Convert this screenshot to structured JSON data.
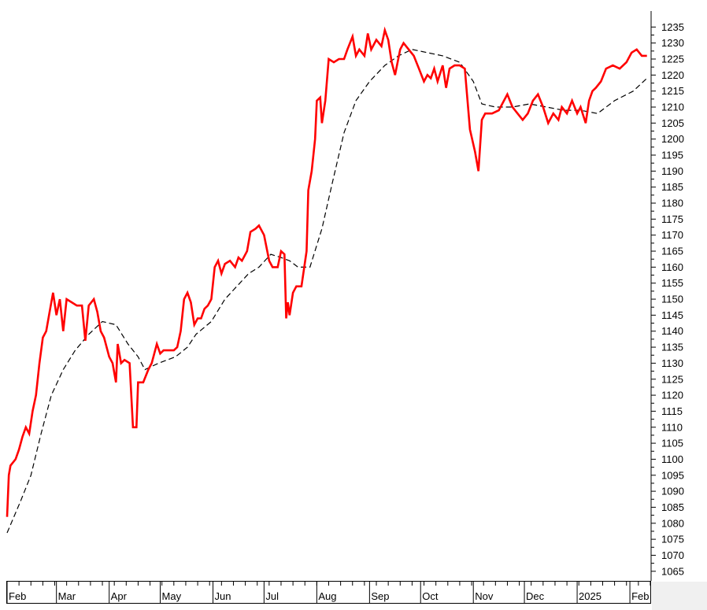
{
  "chart_data": {
    "type": "line",
    "title": "",
    "xlabel": "",
    "ylabel": "",
    "ylim": [
      1062,
      1240
    ],
    "y_ticks": [
      1065,
      1070,
      1075,
      1080,
      1085,
      1090,
      1095,
      1100,
      1105,
      1110,
      1115,
      1120,
      1125,
      1130,
      1135,
      1140,
      1145,
      1150,
      1155,
      1160,
      1165,
      1170,
      1175,
      1180,
      1185,
      1190,
      1195,
      1200,
      1205,
      1210,
      1215,
      1220,
      1225,
      1230,
      1235
    ],
    "x_range": [
      "2024-02-01",
      "2025-02-13"
    ],
    "x_tick_labels": [
      {
        "label": "Feb",
        "date": "2024-02-01"
      },
      {
        "label": "Mar",
        "date": "2024-03-01"
      },
      {
        "label": "Apr",
        "date": "2024-04-01"
      },
      {
        "label": "May",
        "date": "2024-05-01"
      },
      {
        "label": "Jun",
        "date": "2024-06-01"
      },
      {
        "label": "Jul",
        "date": "2024-07-01"
      },
      {
        "label": "Aug",
        "date": "2024-08-01"
      },
      {
        "label": "Sep",
        "date": "2024-09-01"
      },
      {
        "label": "Oct",
        "date": "2024-10-01"
      },
      {
        "label": "Nov",
        "date": "2024-11-01"
      },
      {
        "label": "Dec",
        "date": "2024-12-01"
      },
      {
        "label": "2025",
        "date": "2025-01-01"
      },
      {
        "label": "Feb",
        "date": "2025-02-01"
      }
    ],
    "grid": false,
    "series": [
      {
        "style": "solid",
        "color": "#ff0000",
        "points": [
          [
            "2024-02-01",
            1082
          ],
          [
            "2024-02-02",
            1095
          ],
          [
            "2024-02-03",
            1098
          ],
          [
            "2024-02-06",
            1100
          ],
          [
            "2024-02-08",
            1103
          ],
          [
            "2024-02-10",
            1107
          ],
          [
            "2024-02-12",
            1110
          ],
          [
            "2024-02-14",
            1108
          ],
          [
            "2024-02-16",
            1115
          ],
          [
            "2024-02-18",
            1120
          ],
          [
            "2024-02-20",
            1130
          ],
          [
            "2024-02-22",
            1138
          ],
          [
            "2024-02-24",
            1140
          ],
          [
            "2024-02-26",
            1146
          ],
          [
            "2024-02-28",
            1152
          ],
          [
            "2024-03-01",
            1145
          ],
          [
            "2024-03-03",
            1150
          ],
          [
            "2024-03-05",
            1140
          ],
          [
            "2024-03-07",
            1150
          ],
          [
            "2024-03-10",
            1149
          ],
          [
            "2024-03-13",
            1148
          ],
          [
            "2024-03-16",
            1148
          ],
          [
            "2024-03-18",
            1137
          ],
          [
            "2024-03-20",
            1148
          ],
          [
            "2024-03-23",
            1150
          ],
          [
            "2024-03-25",
            1146
          ],
          [
            "2024-03-27",
            1140
          ],
          [
            "2024-03-29",
            1138
          ],
          [
            "2024-04-01",
            1132
          ],
          [
            "2024-04-03",
            1130
          ],
          [
            "2024-04-05",
            1124
          ],
          [
            "2024-04-06",
            1136
          ],
          [
            "2024-04-08",
            1130
          ],
          [
            "2024-04-10",
            1131
          ],
          [
            "2024-04-13",
            1130
          ],
          [
            "2024-04-15",
            1110
          ],
          [
            "2024-04-17",
            1110
          ],
          [
            "2024-04-18",
            1124
          ],
          [
            "2024-04-21",
            1124
          ],
          [
            "2024-04-24",
            1128
          ],
          [
            "2024-04-26",
            1130
          ],
          [
            "2024-04-29",
            1136
          ],
          [
            "2024-05-01",
            1133
          ],
          [
            "2024-05-03",
            1134
          ],
          [
            "2024-05-06",
            1134
          ],
          [
            "2024-05-09",
            1134
          ],
          [
            "2024-05-11",
            1135
          ],
          [
            "2024-05-13",
            1140
          ],
          [
            "2024-05-15",
            1150
          ],
          [
            "2024-05-17",
            1152
          ],
          [
            "2024-05-19",
            1149
          ],
          [
            "2024-05-21",
            1142
          ],
          [
            "2024-05-23",
            1144
          ],
          [
            "2024-05-25",
            1144
          ],
          [
            "2024-05-27",
            1147
          ],
          [
            "2024-05-29",
            1148
          ],
          [
            "2024-05-31",
            1150
          ],
          [
            "2024-06-02",
            1160
          ],
          [
            "2024-06-04",
            1162
          ],
          [
            "2024-06-06",
            1158
          ],
          [
            "2024-06-08",
            1161
          ],
          [
            "2024-06-11",
            1162
          ],
          [
            "2024-06-14",
            1160
          ],
          [
            "2024-06-16",
            1163
          ],
          [
            "2024-06-18",
            1162
          ],
          [
            "2024-06-21",
            1165
          ],
          [
            "2024-06-23",
            1171
          ],
          [
            "2024-06-26",
            1172
          ],
          [
            "2024-06-28",
            1173
          ],
          [
            "2024-07-01",
            1170
          ],
          [
            "2024-07-04",
            1162
          ],
          [
            "2024-07-06",
            1160
          ],
          [
            "2024-07-09",
            1160
          ],
          [
            "2024-07-11",
            1165
          ],
          [
            "2024-07-13",
            1164
          ],
          [
            "2024-07-14",
            1144
          ],
          [
            "2024-07-15",
            1149
          ],
          [
            "2024-07-16",
            1145
          ],
          [
            "2024-07-18",
            1152
          ],
          [
            "2024-07-20",
            1154
          ],
          [
            "2024-07-23",
            1154
          ],
          [
            "2024-07-26",
            1165
          ],
          [
            "2024-07-27",
            1184
          ],
          [
            "2024-07-29",
            1190
          ],
          [
            "2024-07-31",
            1200
          ],
          [
            "2024-08-01",
            1212
          ],
          [
            "2024-08-03",
            1213
          ],
          [
            "2024-08-04",
            1205
          ],
          [
            "2024-08-06",
            1212
          ],
          [
            "2024-08-08",
            1225
          ],
          [
            "2024-08-11",
            1224
          ],
          [
            "2024-08-14",
            1225
          ],
          [
            "2024-08-17",
            1225
          ],
          [
            "2024-08-19",
            1228
          ],
          [
            "2024-08-22",
            1232
          ],
          [
            "2024-08-24",
            1226
          ],
          [
            "2024-08-26",
            1228
          ],
          [
            "2024-08-29",
            1226
          ],
          [
            "2024-08-31",
            1233
          ],
          [
            "2024-09-02",
            1228
          ],
          [
            "2024-09-05",
            1231
          ],
          [
            "2024-09-08",
            1229
          ],
          [
            "2024-09-10",
            1234
          ],
          [
            "2024-09-12",
            1231
          ],
          [
            "2024-09-14",
            1224
          ],
          [
            "2024-09-16",
            1220
          ],
          [
            "2024-09-19",
            1228
          ],
          [
            "2024-09-21",
            1230
          ],
          [
            "2024-09-24",
            1228
          ],
          [
            "2024-09-27",
            1226
          ],
          [
            "2024-09-30",
            1222
          ],
          [
            "2024-10-03",
            1218
          ],
          [
            "2024-10-05",
            1220
          ],
          [
            "2024-10-07",
            1219
          ],
          [
            "2024-10-09",
            1222
          ],
          [
            "2024-10-11",
            1218
          ],
          [
            "2024-10-14",
            1223
          ],
          [
            "2024-10-16",
            1216
          ],
          [
            "2024-10-18",
            1222
          ],
          [
            "2024-10-21",
            1223
          ],
          [
            "2024-10-24",
            1223
          ],
          [
            "2024-10-27",
            1222
          ],
          [
            "2024-10-30",
            1203
          ],
          [
            "2024-11-02",
            1196
          ],
          [
            "2024-11-04",
            1190
          ],
          [
            "2024-11-06",
            1206
          ],
          [
            "2024-11-08",
            1208
          ],
          [
            "2024-11-12",
            1208
          ],
          [
            "2024-11-16",
            1209
          ],
          [
            "2024-11-19",
            1212
          ],
          [
            "2024-11-21",
            1214
          ],
          [
            "2024-11-24",
            1210
          ],
          [
            "2024-11-27",
            1208
          ],
          [
            "2024-11-30",
            1206
          ],
          [
            "2024-12-03",
            1208
          ],
          [
            "2024-12-06",
            1212
          ],
          [
            "2024-12-09",
            1214
          ],
          [
            "2024-12-12",
            1210
          ],
          [
            "2024-12-15",
            1205
          ],
          [
            "2024-12-18",
            1208
          ],
          [
            "2024-12-21",
            1206
          ],
          [
            "2024-12-23",
            1210
          ],
          [
            "2024-12-26",
            1208
          ],
          [
            "2024-12-29",
            1212
          ],
          [
            "2025-01-01",
            1208
          ],
          [
            "2025-01-03",
            1210
          ],
          [
            "2025-01-06",
            1205
          ],
          [
            "2025-01-08",
            1212
          ],
          [
            "2025-01-10",
            1215
          ],
          [
            "2025-01-12",
            1216
          ],
          [
            "2025-01-15",
            1218
          ],
          [
            "2025-01-18",
            1222
          ],
          [
            "2025-01-22",
            1223
          ],
          [
            "2025-01-26",
            1222
          ],
          [
            "2025-01-30",
            1224
          ],
          [
            "2025-02-02",
            1227
          ],
          [
            "2025-02-05",
            1228
          ],
          [
            "2025-02-08",
            1226
          ],
          [
            "2025-02-11",
            1226
          ]
        ]
      },
      {
        "style": "dashed",
        "color": "#000000",
        "points": [
          [
            "2024-02-01",
            1077
          ],
          [
            "2024-02-09",
            1087
          ],
          [
            "2024-02-15",
            1095
          ],
          [
            "2024-02-21",
            1108
          ],
          [
            "2024-02-27",
            1120
          ],
          [
            "2024-03-05",
            1128
          ],
          [
            "2024-03-12",
            1134
          ],
          [
            "2024-03-20",
            1139
          ],
          [
            "2024-03-28",
            1143
          ],
          [
            "2024-04-05",
            1142
          ],
          [
            "2024-04-12",
            1136
          ],
          [
            "2024-04-18",
            1132
          ],
          [
            "2024-04-22",
            1128
          ],
          [
            "2024-04-30",
            1130
          ],
          [
            "2024-05-10",
            1132
          ],
          [
            "2024-05-17",
            1135
          ],
          [
            "2024-05-22",
            1139
          ],
          [
            "2024-05-31",
            1143
          ],
          [
            "2024-06-08",
            1150
          ],
          [
            "2024-06-15",
            1154
          ],
          [
            "2024-06-22",
            1158
          ],
          [
            "2024-06-28",
            1160
          ],
          [
            "2024-07-05",
            1164
          ],
          [
            "2024-07-11",
            1163
          ],
          [
            "2024-07-16",
            1162
          ],
          [
            "2024-07-21",
            1160
          ],
          [
            "2024-07-28",
            1160
          ],
          [
            "2024-08-04",
            1172
          ],
          [
            "2024-08-10",
            1186
          ],
          [
            "2024-08-17",
            1202
          ],
          [
            "2024-08-24",
            1212
          ],
          [
            "2024-09-01",
            1218
          ],
          [
            "2024-09-10",
            1223
          ],
          [
            "2024-09-18",
            1226
          ],
          [
            "2024-09-26",
            1228
          ],
          [
            "2024-10-05",
            1227
          ],
          [
            "2024-10-14",
            1226
          ],
          [
            "2024-10-24",
            1224
          ],
          [
            "2024-11-01",
            1218
          ],
          [
            "2024-11-06",
            1211
          ],
          [
            "2024-11-14",
            1210
          ],
          [
            "2024-11-24",
            1210
          ],
          [
            "2024-12-04",
            1211
          ],
          [
            "2024-12-14",
            1210
          ],
          [
            "2024-12-24",
            1209
          ],
          [
            "2025-01-03",
            1209
          ],
          [
            "2025-01-13",
            1208
          ],
          [
            "2025-01-23",
            1212
          ],
          [
            "2025-02-03",
            1215
          ],
          [
            "2025-02-11",
            1219
          ]
        ]
      }
    ]
  }
}
